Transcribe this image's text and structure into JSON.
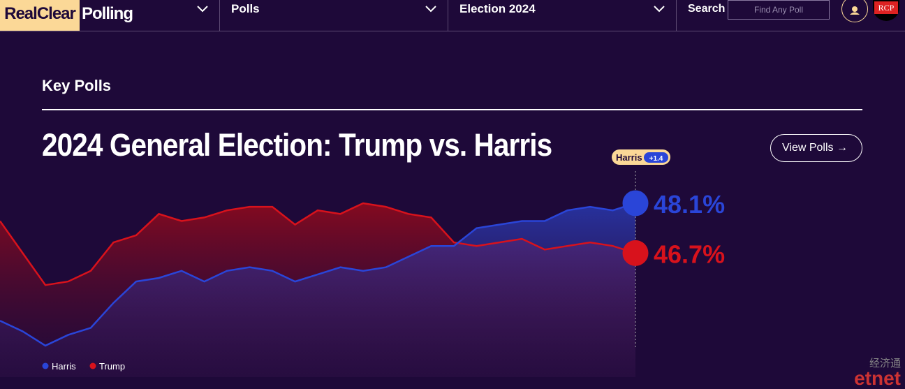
{
  "nav": {
    "logo_a": "RealClear",
    "logo_b": "Polling",
    "menu": [
      "Polls",
      "Election 2024"
    ],
    "search_label": "Search",
    "search_placeholder": "Find Any Poll",
    "badge": "RCP"
  },
  "section": "Key Polls",
  "watermark": [
    "经济通",
    "etnet"
  ],
  "chart_data": {
    "type": "area-line",
    "title": "2024 General Election: Trump vs. Harris",
    "button": "View Polls",
    "leader": "Harris",
    "margin": "+1.4",
    "ylim": [
      44,
      49.1
    ],
    "series": [
      {
        "name": "Harris",
        "color": "#2a45d8",
        "values": [
          44.8,
          44.5,
          44.1,
          44.4,
          44.6,
          45.3,
          45.9,
          46.0,
          46.2,
          45.9,
          46.2,
          46.3,
          46.2,
          45.9,
          46.1,
          46.3,
          46.2,
          46.3,
          46.6,
          46.9,
          46.9,
          47.4,
          47.5,
          47.6,
          47.6,
          47.9,
          48.0,
          47.9,
          48.1
        ],
        "value_labels": [
          null,
          null,
          null,
          null,
          null,
          null,
          null,
          null,
          null,
          null,
          null,
          null,
          null,
          null,
          null,
          null,
          null,
          null,
          null,
          null,
          null,
          null,
          null,
          null,
          null,
          null,
          null,
          null,
          "48.1%"
        ]
      },
      {
        "name": "Trump",
        "color": "#d8121c",
        "values": [
          47.6,
          46.7,
          45.8,
          45.9,
          46.2,
          47.0,
          47.2,
          47.8,
          47.6,
          47.7,
          47.9,
          48.0,
          48.0,
          47.5,
          47.9,
          47.8,
          48.1,
          48.0,
          47.8,
          47.7,
          47.0,
          46.9,
          47.0,
          47.1,
          46.8,
          46.9,
          47.0,
          46.9,
          46.7
        ],
        "value_labels": [
          null,
          null,
          null,
          null,
          null,
          null,
          null,
          null,
          null,
          null,
          null,
          null,
          null,
          null,
          null,
          null,
          null,
          null,
          null,
          null,
          null,
          null,
          null,
          null,
          null,
          null,
          null,
          null,
          "46.7%"
        ]
      }
    ]
  }
}
